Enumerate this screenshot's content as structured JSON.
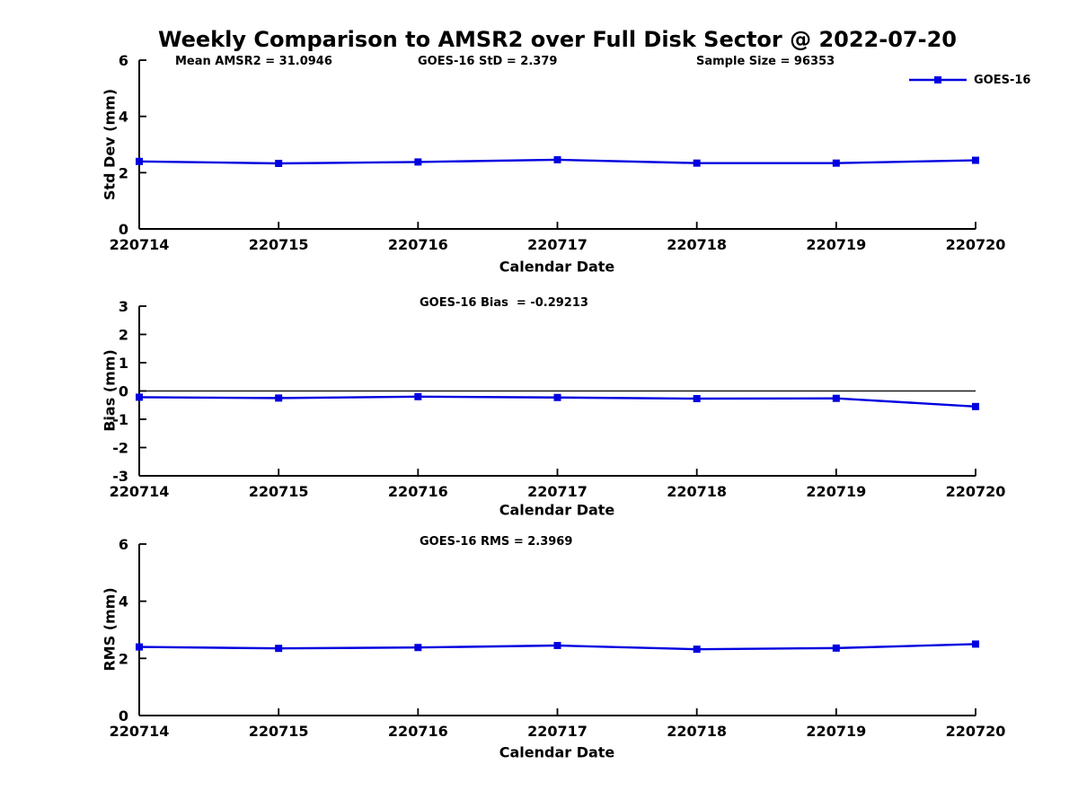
{
  "title": "Weekly Comparison to AMSR2 over Full Disk Sector @ 2022-07-20",
  "legend": {
    "label": "GOES-16",
    "color": "#0000e0"
  },
  "chart_data": [
    {
      "type": "line",
      "title": "",
      "categories": [
        "220714",
        "220715",
        "220716",
        "220717",
        "220718",
        "220719",
        "220720"
      ],
      "series": [
        {
          "name": "GOES-16",
          "color": "#0000e0",
          "values": [
            2.4,
            2.33,
            2.38,
            2.46,
            2.34,
            2.34,
            2.44
          ]
        }
      ],
      "xlabel": "Calendar Date",
      "ylabel": "Std Dev (mm)",
      "ylim": [
        0,
        6
      ],
      "yticks": [
        0,
        2,
        4,
        6
      ],
      "grid": false,
      "legend_position": "upper-right-outside",
      "marker": "square",
      "annotations": [
        "Mean AMSR2 = 31.0946",
        "GOES-16 StD = 2.379",
        "Sample Size = 96353"
      ]
    },
    {
      "type": "line",
      "title": "",
      "categories": [
        "220714",
        "220715",
        "220716",
        "220717",
        "220718",
        "220719",
        "220720"
      ],
      "series": [
        {
          "name": "GOES-16",
          "color": "#0000e0",
          "values": [
            -0.22,
            -0.25,
            -0.2,
            -0.23,
            -0.27,
            -0.26,
            -0.55
          ]
        }
      ],
      "xlabel": "Calendar Date",
      "ylabel": "Bias (mm)",
      "ylim": [
        -3,
        3
      ],
      "yticks": [
        -3,
        -2,
        -1,
        0,
        1,
        2,
        3
      ],
      "zero_line": true,
      "grid": false,
      "marker": "square",
      "annotations": [
        "GOES-16 Bias  = -0.29213"
      ]
    },
    {
      "type": "line",
      "title": "",
      "categories": [
        "220714",
        "220715",
        "220716",
        "220717",
        "220718",
        "220719",
        "220720"
      ],
      "series": [
        {
          "name": "GOES-16",
          "color": "#0000e0",
          "values": [
            2.4,
            2.35,
            2.38,
            2.45,
            2.32,
            2.36,
            2.5
          ]
        }
      ],
      "xlabel": "Calendar Date",
      "ylabel": "RMS (mm)",
      "ylim": [
        0,
        6
      ],
      "yticks": [
        0,
        2,
        4,
        6
      ],
      "grid": false,
      "marker": "square",
      "annotations": [
        "GOES-16 RMS = 2.3969"
      ]
    }
  ]
}
